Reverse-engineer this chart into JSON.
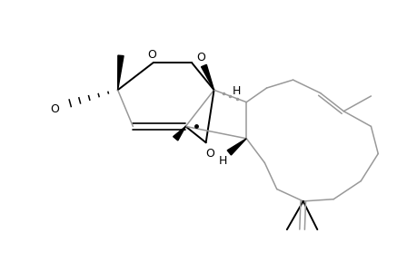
{
  "figsize": [
    4.6,
    3.0
  ],
  "dpi": 100,
  "bg": "#ffffff",
  "xlim": [
    0.5,
    4.6
  ],
  "ylim": [
    0.55,
    2.9
  ],
  "lw_black": 1.4,
  "lw_gray": 1.1
}
